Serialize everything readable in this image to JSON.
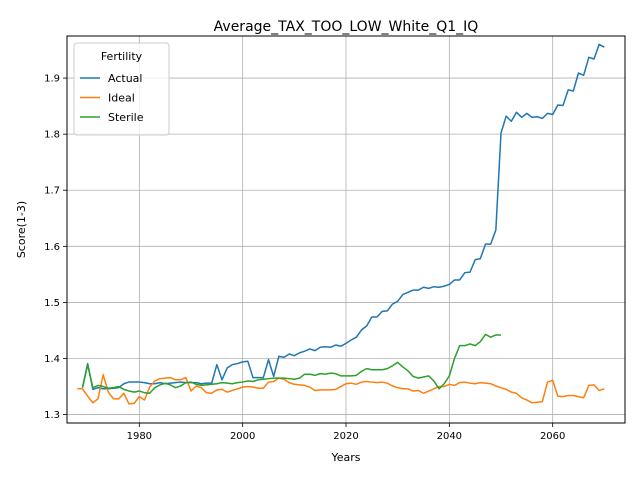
{
  "chart_data": {
    "type": "line",
    "title": "Average_TAX_TOO_LOW_White_Q1_IQ",
    "xlabel": "Years",
    "ylabel": "Score(1-3)",
    "xlim": [
      1966,
      2074
    ],
    "ylim": [
      1.285,
      1.975
    ],
    "xticks": [
      1980,
      2000,
      2020,
      2040,
      2060
    ],
    "yticks": [
      1.3,
      1.4,
      1.5,
      1.6,
      1.7,
      1.8,
      1.9
    ],
    "grid": true,
    "legend": {
      "title": "Fertility",
      "position": "top-left"
    },
    "series": [
      {
        "name": "Actual",
        "color": "#1f77b4",
        "x": [
          1969,
          1970,
          1971,
          1972,
          1973,
          1974,
          1975,
          1976,
          1977,
          1978,
          1979,
          1980,
          1981,
          1982,
          1983,
          1984,
          1985,
          1986,
          1987,
          1988,
          1989,
          1990,
          1991,
          1992,
          1993,
          1994,
          1995,
          1996,
          1997,
          1998,
          1999,
          2000,
          2001,
          2002,
          2003,
          2004,
          2005,
          2006,
          2007,
          2008,
          2009,
          2010,
          2011,
          2012,
          2013,
          2014,
          2015,
          2016,
          2017,
          2018,
          2019,
          2020,
          2021,
          2022,
          2023,
          2024,
          2025,
          2026,
          2027,
          2028,
          2029,
          2030,
          2031,
          2032,
          2033,
          2034,
          2035,
          2036,
          2037,
          2038,
          2039,
          2040,
          2041,
          2042,
          2043,
          2044,
          2045,
          2046,
          2047,
          2048,
          2049,
          2050,
          2051,
          2052,
          2053,
          2054,
          2055,
          2056,
          2057,
          2058,
          2059,
          2060,
          2061,
          2062,
          2063,
          2064,
          2065,
          2066,
          2067,
          2068,
          2069,
          2070
        ],
        "y": [
          1.348,
          1.391,
          1.345,
          1.348,
          1.346,
          1.346,
          1.347,
          1.348,
          1.355,
          1.358,
          1.358,
          1.358,
          1.357,
          1.355,
          1.355,
          1.357,
          1.355,
          1.356,
          1.357,
          1.358,
          1.357,
          1.357,
          1.357,
          1.355,
          1.356,
          1.356,
          1.389,
          1.362,
          1.383,
          1.389,
          1.391,
          1.394,
          1.395,
          1.366,
          1.366,
          1.366,
          1.398,
          1.368,
          1.404,
          1.402,
          1.408,
          1.405,
          1.41,
          1.413,
          1.417,
          1.414,
          1.42,
          1.421,
          1.42,
          1.424,
          1.422,
          1.427,
          1.433,
          1.438,
          1.451,
          1.458,
          1.474,
          1.474,
          1.484,
          1.485,
          1.497,
          1.502,
          1.514,
          1.518,
          1.522,
          1.522,
          1.527,
          1.525,
          1.528,
          1.527,
          1.529,
          1.532,
          1.54,
          1.54,
          1.553,
          1.554,
          1.576,
          1.578,
          1.604,
          1.604,
          1.629,
          1.802,
          1.832,
          1.823,
          1.839,
          1.83,
          1.837,
          1.83,
          1.831,
          1.828,
          1.837,
          1.835,
          1.852,
          1.851,
          1.879,
          1.877,
          1.909,
          1.905,
          1.937,
          1.934,
          1.96,
          1.955
        ]
      },
      {
        "name": "Ideal",
        "color": "#ff7f0e",
        "x": [
          1968,
          1969,
          1970,
          1971,
          1972,
          1973,
          1974,
          1975,
          1976,
          1977,
          1978,
          1979,
          1980,
          1981,
          1982,
          1983,
          1984,
          1985,
          1986,
          1987,
          1988,
          1989,
          1990,
          1991,
          1992,
          1993,
          1994,
          1995,
          1996,
          1997,
          1998,
          1999,
          2000,
          2001,
          2002,
          2003,
          2004,
          2005,
          2006,
          2007,
          2008,
          2009,
          2010,
          2011,
          2012,
          2013,
          2014,
          2015,
          2016,
          2017,
          2018,
          2019,
          2020,
          2021,
          2022,
          2023,
          2024,
          2025,
          2026,
          2027,
          2028,
          2029,
          2030,
          2031,
          2032,
          2033,
          2034,
          2035,
          2036,
          2037,
          2038,
          2039,
          2040,
          2041,
          2042,
          2043,
          2044,
          2045,
          2046,
          2047,
          2048,
          2049,
          2050,
          2051,
          2052,
          2053,
          2054,
          2055,
          2056,
          2057,
          2058,
          2059,
          2060,
          2061,
          2062,
          2063,
          2064,
          2065,
          2066,
          2067,
          2068,
          2069,
          2070
        ],
        "y": [
          1.346,
          1.346,
          1.333,
          1.321,
          1.328,
          1.371,
          1.34,
          1.328,
          1.328,
          1.338,
          1.319,
          1.32,
          1.332,
          1.326,
          1.349,
          1.36,
          1.364,
          1.365,
          1.366,
          1.362,
          1.362,
          1.366,
          1.342,
          1.351,
          1.348,
          1.339,
          1.338,
          1.344,
          1.345,
          1.34,
          1.343,
          1.346,
          1.349,
          1.35,
          1.349,
          1.347,
          1.347,
          1.358,
          1.359,
          1.365,
          1.363,
          1.357,
          1.354,
          1.353,
          1.352,
          1.349,
          1.343,
          1.344,
          1.344,
          1.344,
          1.345,
          1.35,
          1.355,
          1.356,
          1.354,
          1.358,
          1.359,
          1.358,
          1.357,
          1.358,
          1.356,
          1.351,
          1.348,
          1.346,
          1.346,
          1.342,
          1.343,
          1.338,
          1.342,
          1.346,
          1.35,
          1.35,
          1.354,
          1.352,
          1.357,
          1.358,
          1.356,
          1.355,
          1.357,
          1.356,
          1.355,
          1.351,
          1.348,
          1.345,
          1.34,
          1.338,
          1.33,
          1.326,
          1.321,
          1.322,
          1.323,
          1.358,
          1.361,
          1.333,
          1.332,
          1.334,
          1.334,
          1.332,
          1.33,
          1.352,
          1.353,
          1.343,
          1.346
        ]
      },
      {
        "name": "Sterile",
        "color": "#2ca02c",
        "x": [
          1969,
          1970,
          1971,
          1972,
          1973,
          1974,
          1975,
          1976,
          1977,
          1978,
          1979,
          1980,
          1981,
          1982,
          1983,
          1984,
          1985,
          1986,
          1987,
          1988,
          1989,
          1990,
          1991,
          1992,
          1993,
          1994,
          1995,
          1996,
          1997,
          1998,
          1999,
          2000,
          2001,
          2002,
          2003,
          2004,
          2005,
          2006,
          2007,
          2008,
          2009,
          2010,
          2011,
          2012,
          2013,
          2014,
          2015,
          2016,
          2017,
          2018,
          2019,
          2020,
          2021,
          2022,
          2023,
          2024,
          2025,
          2026,
          2027,
          2028,
          2029,
          2030,
          2031,
          2032,
          2033,
          2034,
          2035,
          2036,
          2037,
          2038,
          2039,
          2040,
          2041,
          2042,
          2043,
          2044,
          2045,
          2046,
          2047,
          2048,
          2049,
          2050
        ],
        "y": [
          1.348,
          1.389,
          1.348,
          1.352,
          1.35,
          1.347,
          1.348,
          1.35,
          1.345,
          1.342,
          1.34,
          1.342,
          1.339,
          1.338,
          1.348,
          1.353,
          1.356,
          1.353,
          1.348,
          1.351,
          1.357,
          1.358,
          1.354,
          1.352,
          1.353,
          1.354,
          1.355,
          1.357,
          1.356,
          1.355,
          1.357,
          1.358,
          1.36,
          1.359,
          1.362,
          1.363,
          1.364,
          1.365,
          1.365,
          1.365,
          1.364,
          1.363,
          1.365,
          1.372,
          1.372,
          1.37,
          1.373,
          1.372,
          1.374,
          1.373,
          1.369,
          1.369,
          1.369,
          1.37,
          1.377,
          1.382,
          1.38,
          1.38,
          1.38,
          1.382,
          1.387,
          1.393,
          1.385,
          1.378,
          1.368,
          1.365,
          1.367,
          1.369,
          1.36,
          1.346,
          1.355,
          1.369,
          1.4,
          1.423,
          1.423,
          1.426,
          1.423,
          1.43,
          1.443,
          1.438,
          1.442,
          1.442
        ]
      }
    ]
  }
}
